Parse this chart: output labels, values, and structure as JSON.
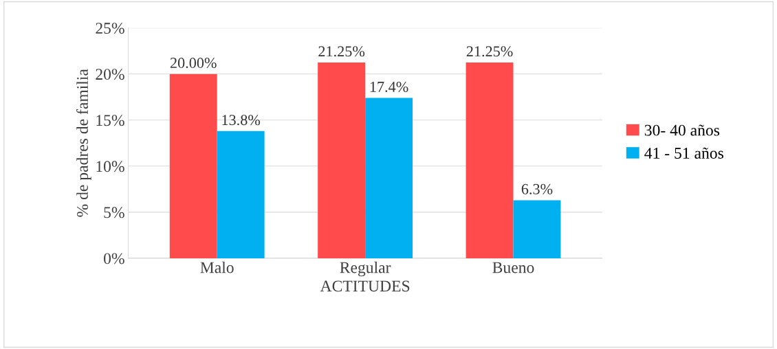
{
  "chart_data": {
    "type": "bar",
    "xlabel": "ACTITUDES",
    "ylabel": "% de padres de familia",
    "categories": [
      "Malo",
      "Regular",
      "Bueno"
    ],
    "series": [
      {
        "name": "30- 40 años",
        "color": "#ff4b4b",
        "values": [
          20.0,
          21.25,
          21.25
        ],
        "value_labels": [
          "20.00%",
          "21.25%",
          "21.25%"
        ]
      },
      {
        "name": "41 - 51 años",
        "color": "#00b0f0",
        "values": [
          13.8,
          17.4,
          6.3
        ],
        "value_labels": [
          "13.8%",
          "17.4%",
          "6.3%"
        ]
      }
    ],
    "ylim": [
      0,
      25
    ],
    "yticks": [
      {
        "value": 0,
        "label": "0%"
      },
      {
        "value": 5,
        "label": "5%"
      },
      {
        "value": 10,
        "label": "10%"
      },
      {
        "value": 15,
        "label": "15%"
      },
      {
        "value": 20,
        "label": "20%"
      },
      {
        "value": 25,
        "label": "25%"
      }
    ],
    "grid": "y",
    "legend": "right"
  }
}
